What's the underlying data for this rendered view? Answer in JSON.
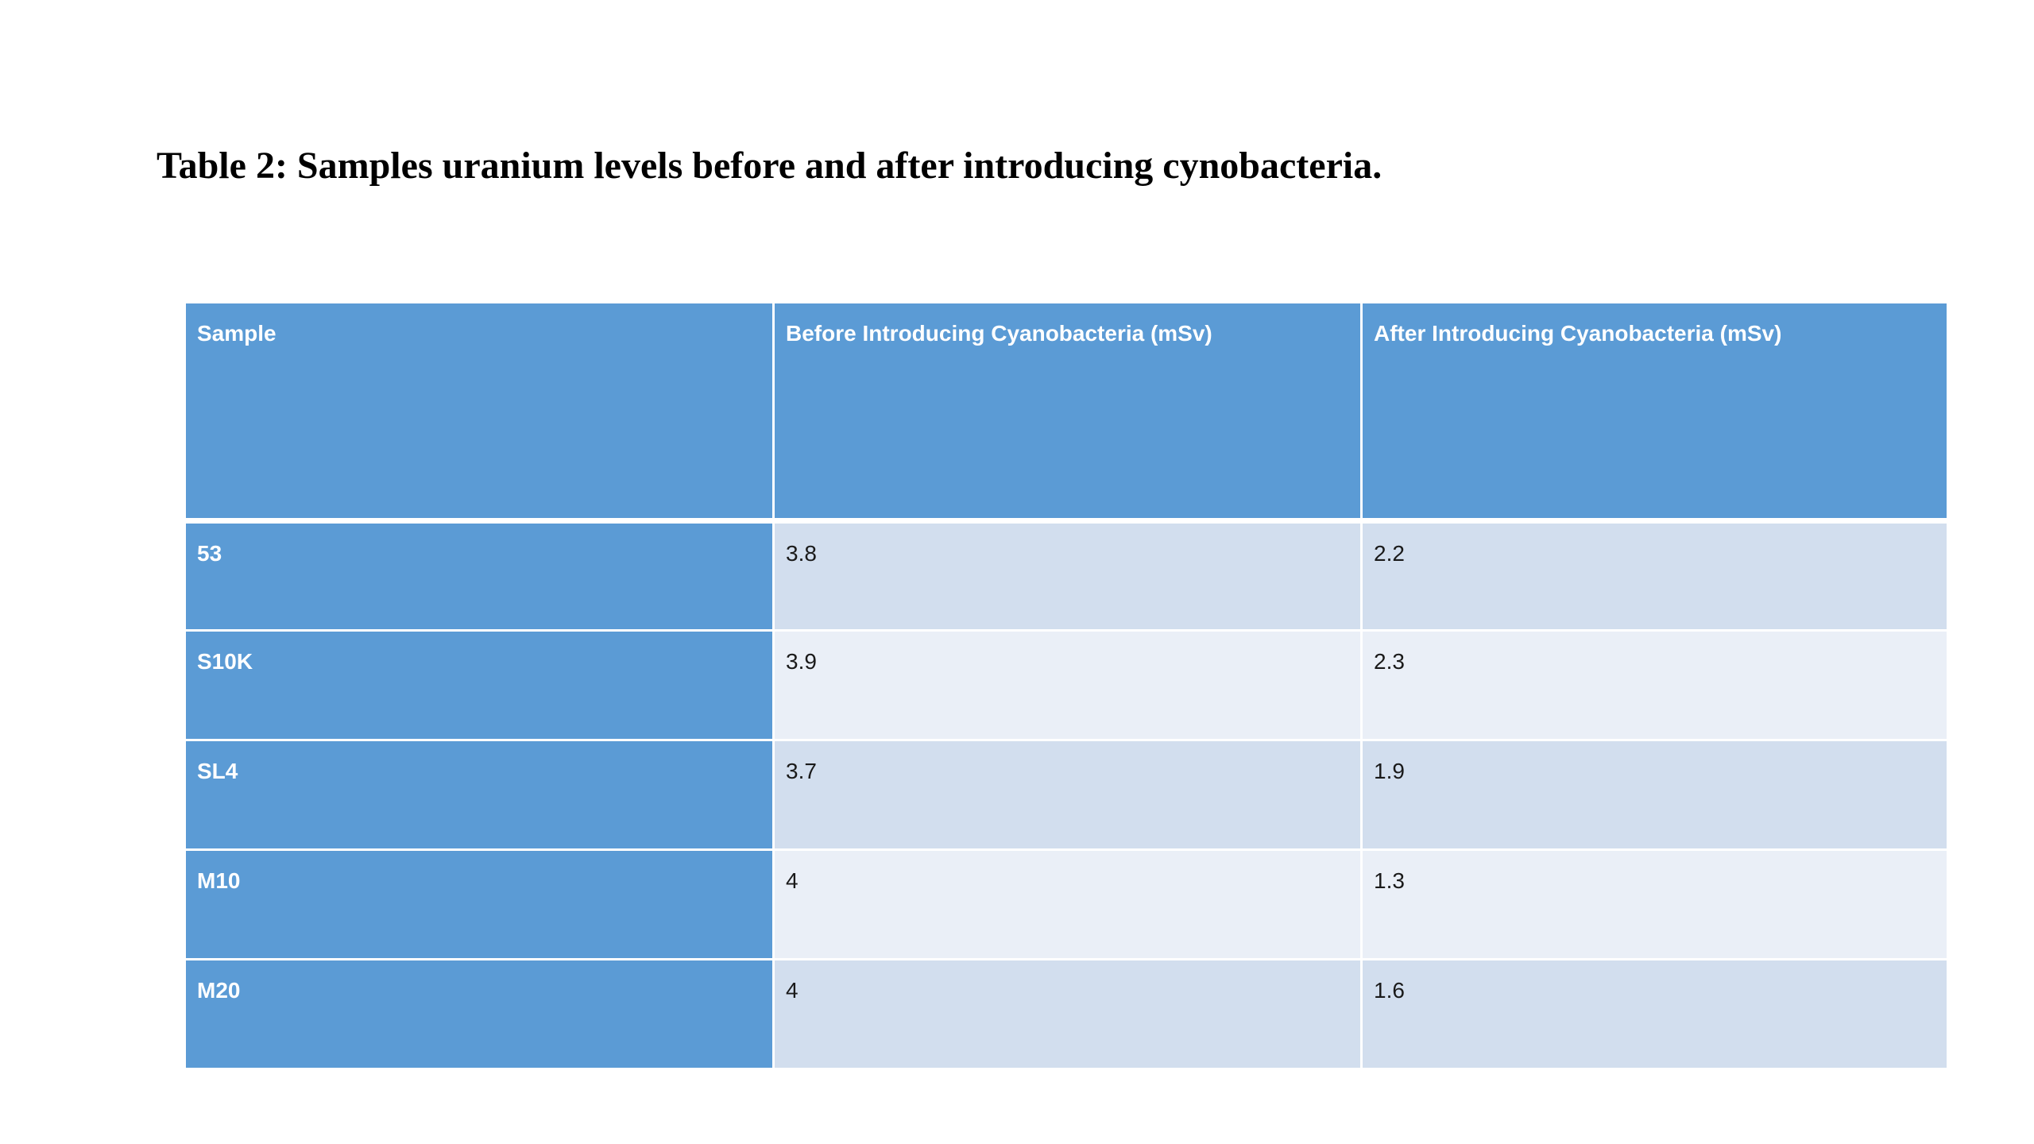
{
  "caption": "Table 2: Samples uranium levels before and after introducing cynobacteria.",
  "colors": {
    "header_blue": "#5b9bd5",
    "row_band_dark": "#d2deee",
    "row_band_light": "#eaeff7"
  },
  "chart_data": {
    "type": "table",
    "title": "Table 2: Samples uranium levels before and after introducing cynobacteria.",
    "columns": [
      "Sample",
      "Before Introducing Cyanobacteria (mSv)",
      "After Introducing Cyanobacteria (mSv)"
    ],
    "rows": [
      [
        "53",
        "3.8",
        "2.2"
      ],
      [
        "S10K",
        "3.9",
        "2.3"
      ],
      [
        "SL4",
        "3.7",
        "1.9"
      ],
      [
        "M10",
        "4",
        "1.3"
      ],
      [
        "M20",
        "4",
        "1.6"
      ]
    ]
  }
}
